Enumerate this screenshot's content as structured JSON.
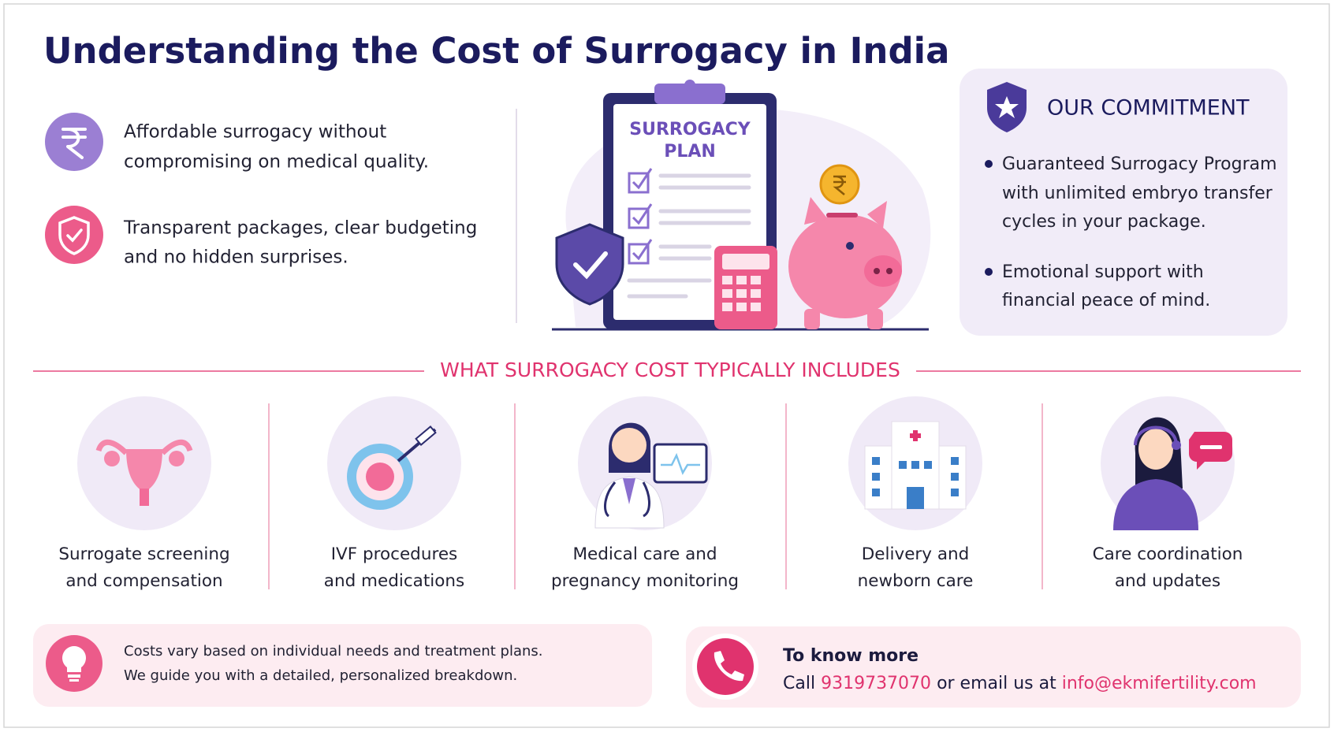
{
  "header": {
    "title": "Understanding the Cost of Surrogacy in India"
  },
  "features": [
    {
      "lines": [
        "Affordable surrogacy without",
        "compromising on medical quality."
      ]
    },
    {
      "lines": [
        "Transparent packages, clear budgeting",
        "and no hidden surprises."
      ]
    }
  ],
  "illustration": {
    "clipboard_lines": [
      "SURROGACY",
      "PLAN"
    ]
  },
  "commitment": {
    "title": "OUR COMMITMENT",
    "bullets": [
      {
        "lines": [
          "Guaranteed Surrogacy Program",
          "with unlimited embryo transfer",
          "cycles in your package."
        ]
      },
      {
        "lines": [
          "Emotional support with",
          "financial peace of mind."
        ]
      }
    ]
  },
  "includes": {
    "heading": "WHAT SURROGACY COST TYPICALLY INCLUDES",
    "items": [
      {
        "lines": [
          "Surrogate screening",
          "and compensation"
        ]
      },
      {
        "lines": [
          "IVF procedures",
          "and medications"
        ]
      },
      {
        "lines": [
          "Medical care and",
          "pregnancy monitoring"
        ]
      },
      {
        "lines": [
          "Delivery and",
          "newborn care"
        ]
      },
      {
        "lines": [
          "Care coordination",
          "and updates"
        ]
      }
    ]
  },
  "note": {
    "lines": [
      "Costs vary based on individual needs and treatment plans.",
      "We guide you with a detailed, personalized breakdown."
    ]
  },
  "contact": {
    "heading": "To know more",
    "call": "Call",
    "phone": "9319737070",
    "middle": "or email us at",
    "email": "info@ekmifertility.com"
  }
}
